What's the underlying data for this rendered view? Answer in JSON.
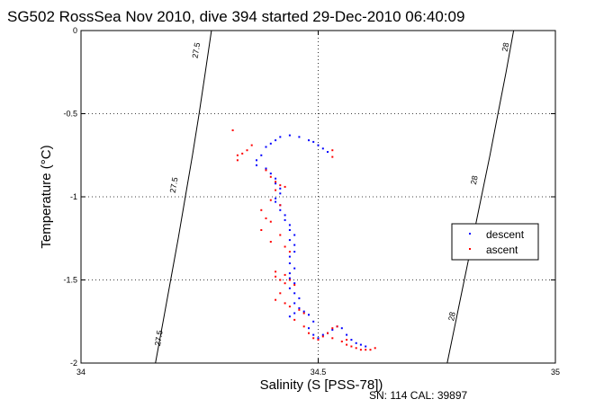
{
  "chart_data": {
    "type": "scatter",
    "title": "SG502 RossSea Nov 2010, dive 394 started 29-Dec-2010 06:40:09",
    "xlabel": "Salinity (S [PSS-78])",
    "ylabel": "Temperature (°C)",
    "xlim": [
      34,
      35
    ],
    "ylim": [
      -2,
      0
    ],
    "x_ticks": [
      "34",
      "34.5",
      "35"
    ],
    "y_ticks": [
      "-2",
      "-1.5",
      "-1",
      "-0.5",
      "0"
    ],
    "grid": true,
    "legend_position": "right",
    "footnote": "SN: 114  CAL: 39897",
    "density_contours": [
      {
        "label": "27.5",
        "points": [
          [
            34.157,
            -2.0
          ],
          [
            34.173,
            -1.75
          ],
          [
            34.189,
            -1.5
          ],
          [
            34.205,
            -1.25
          ],
          [
            34.22,
            -1.0
          ],
          [
            34.235,
            -0.75
          ],
          [
            34.249,
            -0.5
          ],
          [
            34.262,
            -0.25
          ],
          [
            34.275,
            0.0
          ]
        ],
        "label_positions": [
          [
            34.165,
            -1.85
          ],
          [
            34.197,
            -0.93
          ],
          [
            34.244,
            -0.12
          ]
        ]
      },
      {
        "label": "28",
        "points": [
          [
            34.772,
            -2.0
          ],
          [
            34.79,
            -1.75
          ],
          [
            34.808,
            -1.5
          ],
          [
            34.826,
            -1.25
          ],
          [
            34.844,
            -1.0
          ],
          [
            34.862,
            -0.75
          ],
          [
            34.879,
            -0.5
          ],
          [
            34.896,
            -0.25
          ],
          [
            34.912,
            0.0
          ]
        ],
        "label_positions": [
          [
            34.783,
            -1.72
          ],
          [
            34.83,
            -0.9
          ],
          [
            34.896,
            -0.1
          ]
        ]
      }
    ],
    "series": [
      {
        "name": "descent",
        "color": "#0000ff",
        "points": [
          [
            34.39,
            -0.7
          ],
          [
            34.4,
            -0.68
          ],
          [
            34.41,
            -0.66
          ],
          [
            34.42,
            -0.64
          ],
          [
            34.44,
            -0.63
          ],
          [
            34.46,
            -0.64
          ],
          [
            34.48,
            -0.66
          ],
          [
            34.49,
            -0.67
          ],
          [
            34.5,
            -0.69
          ],
          [
            34.51,
            -0.71
          ],
          [
            34.52,
            -0.73
          ],
          [
            34.38,
            -0.75
          ],
          [
            34.37,
            -0.78
          ],
          [
            34.37,
            -0.81
          ],
          [
            34.39,
            -0.83
          ],
          [
            34.4,
            -0.86
          ],
          [
            34.41,
            -0.89
          ],
          [
            34.41,
            -0.92
          ],
          [
            34.42,
            -0.95
          ],
          [
            34.42,
            -0.98
          ],
          [
            34.41,
            -1.01
          ],
          [
            34.41,
            -1.03
          ],
          [
            34.42,
            -1.05
          ],
          [
            34.42,
            -1.08
          ],
          [
            34.43,
            -1.11
          ],
          [
            34.43,
            -1.14
          ],
          [
            34.44,
            -1.17
          ],
          [
            34.44,
            -1.2
          ],
          [
            34.45,
            -1.23
          ],
          [
            34.44,
            -1.26
          ],
          [
            34.45,
            -1.29
          ],
          [
            34.45,
            -1.33
          ],
          [
            34.44,
            -1.36
          ],
          [
            34.44,
            -1.4
          ],
          [
            34.45,
            -1.43
          ],
          [
            34.44,
            -1.46
          ],
          [
            34.44,
            -1.49
          ],
          [
            34.45,
            -1.52
          ],
          [
            34.44,
            -1.55
          ],
          [
            34.45,
            -1.58
          ],
          [
            34.46,
            -1.61
          ],
          [
            34.45,
            -1.64
          ],
          [
            34.46,
            -1.67
          ],
          [
            34.45,
            -1.7
          ],
          [
            34.44,
            -1.72
          ],
          [
            34.47,
            -1.69
          ],
          [
            34.48,
            -1.71
          ],
          [
            34.49,
            -1.75
          ],
          [
            34.48,
            -1.79
          ],
          [
            34.49,
            -1.83
          ],
          [
            34.5,
            -1.85
          ],
          [
            34.51,
            -1.83
          ],
          [
            34.52,
            -1.82
          ],
          [
            34.53,
            -1.8
          ],
          [
            34.54,
            -1.78
          ],
          [
            34.55,
            -1.79
          ],
          [
            34.56,
            -1.83
          ],
          [
            34.57,
            -1.86
          ],
          [
            34.58,
            -1.88
          ],
          [
            34.59,
            -1.89
          ],
          [
            34.6,
            -1.9
          ]
        ]
      },
      {
        "name": "ascent",
        "color": "#ff0000",
        "points": [
          [
            34.32,
            -0.6
          ],
          [
            34.33,
            -0.75
          ],
          [
            34.34,
            -0.74
          ],
          [
            34.35,
            -0.72
          ],
          [
            34.36,
            -0.69
          ],
          [
            34.33,
            -0.78
          ],
          [
            34.53,
            -0.72
          ],
          [
            34.53,
            -0.76
          ],
          [
            34.39,
            -0.84
          ],
          [
            34.4,
            -0.88
          ],
          [
            34.41,
            -0.91
          ],
          [
            34.42,
            -0.93
          ],
          [
            34.41,
            -0.96
          ],
          [
            34.43,
            -0.94
          ],
          [
            34.4,
            -1.02
          ],
          [
            34.42,
            -1.05
          ],
          [
            34.38,
            -1.08
          ],
          [
            34.39,
            -1.13
          ],
          [
            34.4,
            -1.15
          ],
          [
            34.38,
            -1.2
          ],
          [
            34.42,
            -1.23
          ],
          [
            34.4,
            -1.27
          ],
          [
            34.43,
            -1.3
          ],
          [
            34.44,
            -1.33
          ],
          [
            34.41,
            -1.45
          ],
          [
            34.41,
            -1.48
          ],
          [
            34.42,
            -1.5
          ],
          [
            34.43,
            -1.52
          ],
          [
            34.43,
            -1.47
          ],
          [
            34.44,
            -1.5
          ],
          [
            34.45,
            -1.53
          ],
          [
            34.42,
            -1.58
          ],
          [
            34.41,
            -1.62
          ],
          [
            34.43,
            -1.64
          ],
          [
            34.44,
            -1.66
          ],
          [
            34.46,
            -1.68
          ],
          [
            34.47,
            -1.7
          ],
          [
            34.45,
            -1.74
          ],
          [
            34.47,
            -1.78
          ],
          [
            34.48,
            -1.82
          ],
          [
            34.49,
            -1.85
          ],
          [
            34.5,
            -1.86
          ],
          [
            34.51,
            -1.84
          ],
          [
            34.52,
            -1.82
          ],
          [
            34.53,
            -1.79
          ],
          [
            34.54,
            -1.78
          ],
          [
            34.53,
            -1.85
          ],
          [
            34.55,
            -1.87
          ],
          [
            34.56,
            -1.89
          ],
          [
            34.57,
            -1.9
          ],
          [
            34.58,
            -1.91
          ],
          [
            34.59,
            -1.92
          ],
          [
            34.6,
            -1.92
          ],
          [
            34.61,
            -1.92
          ],
          [
            34.62,
            -1.91
          ],
          [
            34.56,
            -1.86
          ]
        ]
      }
    ]
  }
}
